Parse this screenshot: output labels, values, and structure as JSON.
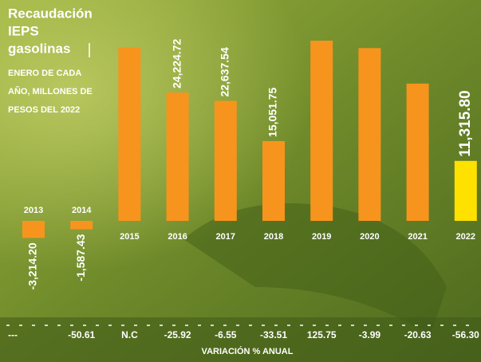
{
  "chart_data": {
    "type": "bar",
    "title": [
      "Recaudación",
      "IEPS",
      "gasolinas"
    ],
    "subtitle": [
      "ENERO DE CADA",
      "AÑO, MILLONES DE",
      "PESOS DEL 2022"
    ],
    "categories": [
      "2013",
      "2014",
      "2015",
      "2016",
      "2017",
      "2018",
      "2019",
      "2020",
      "2021",
      "2022"
    ],
    "values": [
      -3214.2,
      -1587.43,
      32700,
      24224.72,
      22637.54,
      15051.75,
      34000,
      32600,
      25900,
      11315.8
    ],
    "value_labels": [
      "-3,214.20",
      "-1,587.43",
      null,
      "24,224.72",
      "22,637.54",
      "15,051.75",
      null,
      null,
      null,
      "11,315.80"
    ],
    "colors": [
      "#f7941d",
      "#f7941d",
      "#f7941d",
      "#f7941d",
      "#f7941d",
      "#f7941d",
      "#f7941d",
      "#f7941d",
      "#f7941d",
      "#ffe100"
    ],
    "variation": [
      "---",
      "-50.61",
      "N.C",
      "-25.92",
      "-6.55",
      "-33.51",
      "125.75",
      "-3.99",
      "-20.63",
      "-56.30"
    ],
    "variation_label": "VARIACIÓN % ANUAL"
  }
}
